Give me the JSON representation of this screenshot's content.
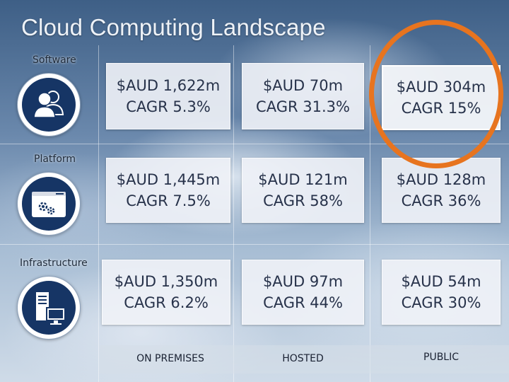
{
  "title": "Cloud Computing Landscape",
  "rows": [
    {
      "label": "Software",
      "icon": "users-icon"
    },
    {
      "label": "Platform",
      "icon": "browser-gears-icon"
    },
    {
      "label": "Infrastructure",
      "icon": "server-monitor-icon"
    }
  ],
  "columns": [
    "ON PREMISES",
    "HOSTED",
    "PUBLIC"
  ],
  "cells": [
    [
      {
        "value": "$AUD 1,622m",
        "cagr": "CAGR 5.3%"
      },
      {
        "value": "$AUD 70m",
        "cagr": "CAGR 31.3%"
      },
      {
        "value": "$AUD 304m",
        "cagr": "CAGR 15%"
      }
    ],
    [
      {
        "value": "$AUD 1,445m",
        "cagr": "CAGR 7.5%"
      },
      {
        "value": "$AUD 121m",
        "cagr": "CAGR 58%"
      },
      {
        "value": "$AUD 128m",
        "cagr": "CAGR 36%"
      }
    ],
    [
      {
        "value": "$AUD 1,350m",
        "cagr": "CAGR 6.2%"
      },
      {
        "value": "$AUD 97m",
        "cagr": "CAGR 44%"
      },
      {
        "value": "$AUD 54m",
        "cagr": "CAGR 30%"
      }
    ]
  ],
  "highlight": {
    "row": 0,
    "column": 2,
    "color": "#e7741f"
  },
  "icon_color": "#163565"
}
